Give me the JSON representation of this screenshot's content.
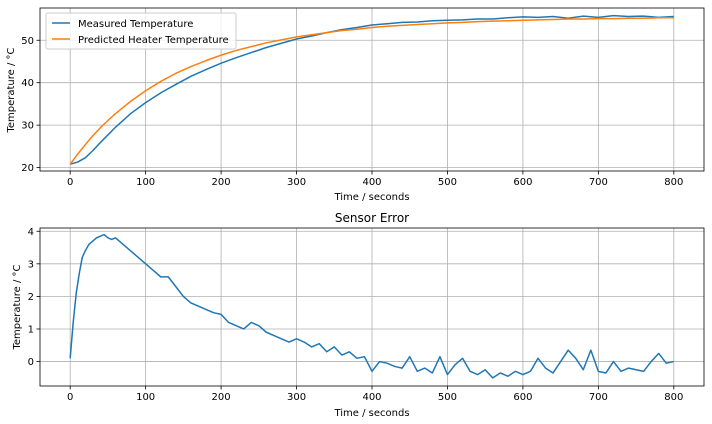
{
  "chart_data": [
    {
      "type": "line",
      "title": "",
      "xlabel": "Time / seconds",
      "ylabel": "Temperature / °C",
      "xlim": [
        -40,
        840
      ],
      "ylim": [
        19.2,
        57.6
      ],
      "xticks": [
        0,
        100,
        200,
        300,
        400,
        500,
        600,
        700,
        800
      ],
      "yticks": [
        20,
        30,
        40,
        50
      ],
      "grid": true,
      "legend": {
        "placement": "top-left"
      },
      "series": [
        {
          "name": "Measured Temperature",
          "color": "#1f77b4",
          "x": [
            0,
            10,
            20,
            30,
            40,
            50,
            60,
            80,
            100,
            120,
            140,
            160,
            180,
            200,
            220,
            240,
            260,
            280,
            300,
            320,
            340,
            360,
            380,
            400,
            420,
            440,
            460,
            480,
            500,
            520,
            540,
            560,
            580,
            600,
            620,
            640,
            660,
            680,
            700,
            720,
            740,
            760,
            780,
            800
          ],
          "y": [
            20.8,
            21.3,
            22.3,
            24.0,
            25.9,
            27.7,
            29.5,
            32.7,
            35.3,
            37.6,
            39.6,
            41.5,
            43.1,
            44.6,
            45.9,
            47.1,
            48.3,
            49.3,
            50.3,
            51.0,
            51.8,
            52.5,
            53.0,
            53.6,
            53.9,
            54.2,
            54.3,
            54.6,
            54.7,
            54.8,
            55.0,
            55.0,
            55.3,
            55.5,
            55.4,
            55.6,
            55.2,
            55.7,
            55.4,
            55.8,
            55.6,
            55.7,
            55.4,
            55.6
          ]
        },
        {
          "name": "Predicted Heater Temperature",
          "color": "#ff7f0e",
          "x": [
            0,
            10,
            20,
            30,
            40,
            50,
            60,
            80,
            100,
            120,
            140,
            160,
            180,
            200,
            220,
            240,
            260,
            280,
            300,
            320,
            340,
            360,
            380,
            400,
            420,
            440,
            460,
            480,
            500,
            520,
            540,
            560,
            580,
            600,
            620,
            640,
            660,
            680,
            700,
            720,
            740,
            760,
            780,
            800
          ],
          "y": [
            20.8,
            23.2,
            25.4,
            27.5,
            29.4,
            31.1,
            32.7,
            35.6,
            38.1,
            40.3,
            42.2,
            43.8,
            45.2,
            46.5,
            47.6,
            48.5,
            49.4,
            50.1,
            50.8,
            51.3,
            51.8,
            52.3,
            52.6,
            53.0,
            53.3,
            53.5,
            53.7,
            53.9,
            54.1,
            54.2,
            54.4,
            54.5,
            54.6,
            54.7,
            54.8,
            54.9,
            55.0,
            55.0,
            55.1,
            55.1,
            55.2,
            55.2,
            55.3,
            55.3
          ]
        }
      ]
    },
    {
      "type": "line",
      "title": "Sensor Error",
      "xlabel": "Time / seconds",
      "ylabel": "Temperature / °C",
      "xlim": [
        -40,
        840
      ],
      "ylim": [
        -0.75,
        4.1
      ],
      "xticks": [
        0,
        100,
        200,
        300,
        400,
        500,
        600,
        700,
        800
      ],
      "yticks": [
        0,
        1,
        2,
        3,
        4
      ],
      "grid": true,
      "series": [
        {
          "name": "",
          "color": "#1f77b4",
          "x": [
            0,
            4,
            8,
            12,
            16,
            20,
            25,
            30,
            35,
            40,
            45,
            50,
            55,
            60,
            65,
            70,
            75,
            80,
            90,
            100,
            110,
            120,
            130,
            140,
            150,
            160,
            170,
            180,
            190,
            200,
            210,
            220,
            230,
            240,
            250,
            260,
            270,
            280,
            290,
            300,
            310,
            320,
            330,
            340,
            350,
            360,
            370,
            380,
            390,
            400,
            410,
            420,
            430,
            440,
            450,
            460,
            470,
            480,
            490,
            500,
            510,
            520,
            530,
            540,
            550,
            560,
            570,
            580,
            590,
            600,
            610,
            620,
            630,
            640,
            650,
            660,
            670,
            680,
            690,
            700,
            710,
            720,
            730,
            740,
            750,
            760,
            770,
            780,
            790,
            800
          ],
          "y": [
            0.1,
            1.2,
            2.1,
            2.7,
            3.2,
            3.4,
            3.6,
            3.7,
            3.8,
            3.85,
            3.9,
            3.8,
            3.75,
            3.8,
            3.7,
            3.6,
            3.5,
            3.4,
            3.2,
            3.0,
            2.8,
            2.6,
            2.6,
            2.3,
            2.0,
            1.8,
            1.7,
            1.6,
            1.5,
            1.45,
            1.2,
            1.1,
            1.0,
            1.2,
            1.1,
            0.9,
            0.8,
            0.7,
            0.6,
            0.7,
            0.6,
            0.45,
            0.55,
            0.3,
            0.45,
            0.2,
            0.3,
            0.1,
            0.15,
            -0.3,
            0.0,
            -0.05,
            -0.15,
            -0.2,
            0.15,
            -0.3,
            -0.2,
            -0.35,
            0.15,
            -0.4,
            -0.1,
            0.1,
            -0.3,
            -0.4,
            -0.25,
            -0.5,
            -0.35,
            -0.45,
            -0.3,
            -0.4,
            -0.3,
            0.1,
            -0.2,
            -0.35,
            0.0,
            0.35,
            0.1,
            -0.25,
            0.35,
            -0.3,
            -0.35,
            0.0,
            -0.3,
            -0.2,
            -0.25,
            -0.3,
            0.0,
            0.25,
            -0.05,
            0.0
          ]
        }
      ]
    }
  ]
}
